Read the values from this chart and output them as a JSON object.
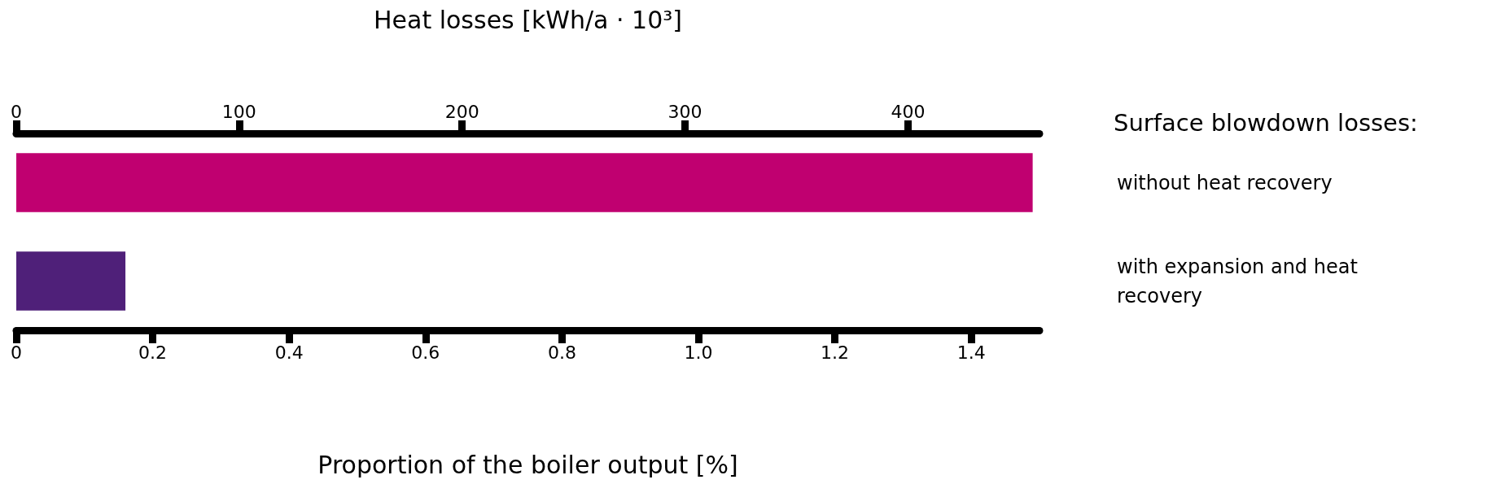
{
  "chart_data": {
    "type": "bar",
    "orientation": "horizontal",
    "xlabel": "Proportion of the boiler output [%]",
    "x2label": "Heat losses [kWh/a · 10³]",
    "legend_title": "Surface blowdown losses:",
    "categories": [
      "without heat recovery",
      "with expansion and heat recovery"
    ],
    "values": [
      1.49,
      0.16
    ],
    "colors": [
      "#c00070",
      "#4f2079"
    ],
    "xlim": [
      0,
      1.5
    ],
    "xticks": [
      0,
      0.2,
      0.4,
      0.6,
      0.8,
      {
        "value": 1,
        "label": "1.0"
      },
      1.2,
      1.4
    ],
    "x2lim": [
      0,
      459
    ],
    "x2ticks": [
      0,
      100,
      200,
      300,
      400
    ]
  }
}
